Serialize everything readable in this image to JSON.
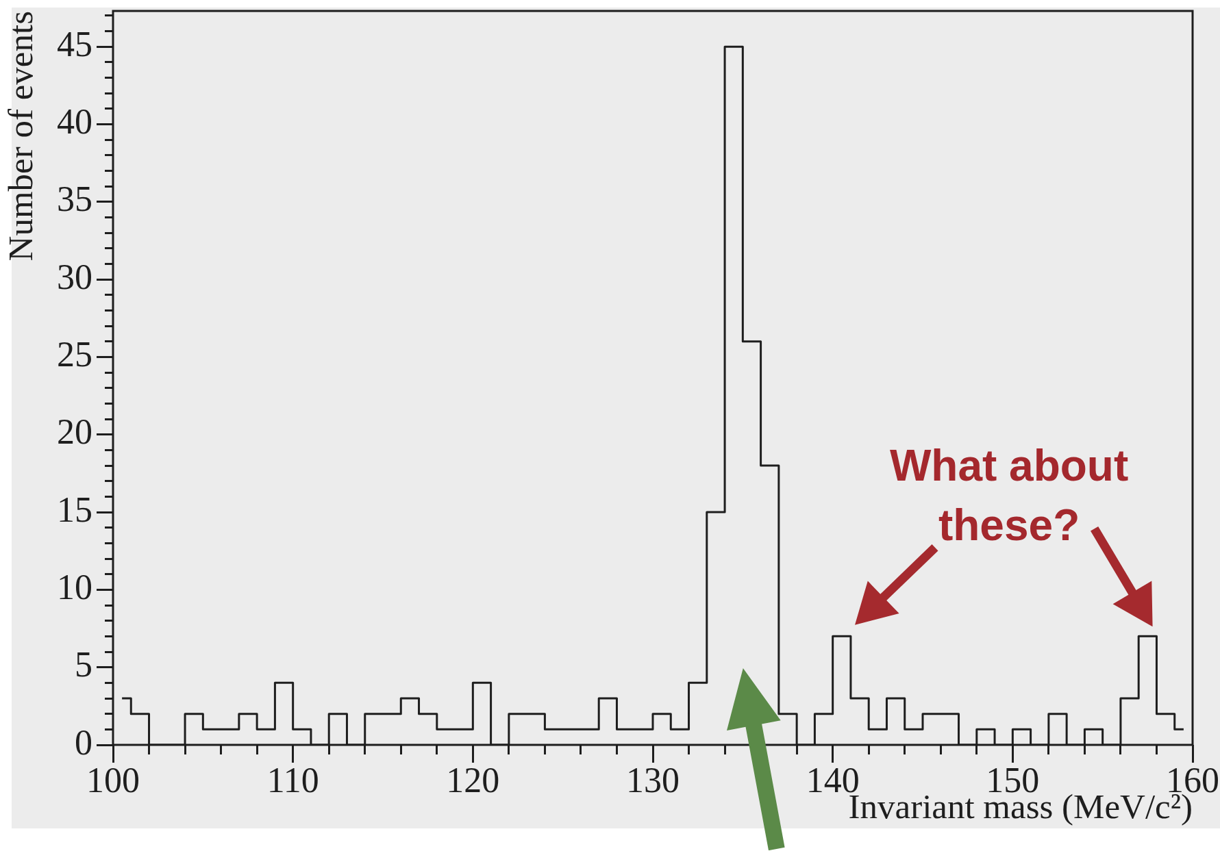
{
  "chart_data": {
    "type": "step",
    "xlabel": "Invariant mass (MeV/c²)",
    "ylabel": "Number of events",
    "x": [
      100.5,
      101.5,
      102.5,
      103.5,
      104.5,
      105.5,
      106.5,
      107.5,
      108.5,
      109.5,
      110.5,
      111.5,
      112.5,
      113.5,
      114.5,
      115.5,
      116.5,
      117.5,
      118.5,
      119.5,
      120.5,
      121.5,
      122.5,
      123.5,
      124.5,
      125.5,
      126.5,
      127.5,
      128.5,
      129.5,
      130.5,
      131.5,
      132.5,
      133.5,
      134.5,
      135.5,
      136.5,
      137.5,
      138.5,
      139.5,
      140.5,
      141.5,
      142.5,
      143.5,
      144.5,
      145.5,
      146.5,
      147.5,
      148.5,
      149.5,
      150.5,
      151.5,
      152.5,
      153.5,
      154.5,
      155.5,
      156.5,
      157.5,
      158.5,
      159.5
    ],
    "values": [
      3,
      2,
      0,
      0,
      2,
      1,
      1,
      2,
      1,
      4,
      1,
      0,
      2,
      0,
      2,
      2,
      3,
      2,
      1,
      1,
      4,
      0,
      2,
      2,
      1,
      1,
      1,
      3,
      1,
      1,
      2,
      1,
      4,
      15,
      45,
      26,
      18,
      2,
      0,
      2,
      7,
      3,
      1,
      3,
      1,
      2,
      2,
      0,
      1,
      0,
      1,
      0,
      2,
      0,
      1,
      0,
      3,
      7,
      2,
      1
    ],
    "color": "#1e1e1e",
    "xlim": [
      100,
      160
    ],
    "xticks": [
      100,
      {
        "value": 102,
        "label": null
      },
      {
        "value": 104,
        "label": null
      },
      {
        "value": 106,
        "label": null
      },
      {
        "value": 108,
        "label": null
      },
      110,
      {
        "value": 112,
        "label": null
      },
      {
        "value": 114,
        "label": null
      },
      {
        "value": 116,
        "label": null
      },
      {
        "value": 118,
        "label": null
      },
      120,
      {
        "value": 122,
        "label": null
      },
      {
        "value": 124,
        "label": null
      },
      {
        "value": 126,
        "label": null
      },
      {
        "value": 128,
        "label": null
      },
      130,
      {
        "value": 132,
        "label": null
      },
      {
        "value": 134,
        "label": null
      },
      {
        "value": 136,
        "label": null
      },
      {
        "value": 138,
        "label": null
      },
      140,
      {
        "value": 142,
        "label": null
      },
      {
        "value": 144,
        "label": null
      },
      {
        "value": 146,
        "label": null
      },
      {
        "value": 148,
        "label": null
      },
      150,
      {
        "value": 152,
        "label": null
      },
      {
        "value": 154,
        "label": null
      },
      {
        "value": 156,
        "label": null
      },
      {
        "value": 158,
        "label": null
      },
      160
    ],
    "ylim": [
      0,
      47.3
    ],
    "yticks": [
      0,
      {
        "value": 1,
        "label": null
      },
      {
        "value": 2,
        "label": null
      },
      {
        "value": 3,
        "label": null
      },
      {
        "value": 4,
        "label": null
      },
      5,
      {
        "value": 6,
        "label": null
      },
      {
        "value": 7,
        "label": null
      },
      {
        "value": 8,
        "label": null
      },
      {
        "value": 9,
        "label": null
      },
      10,
      {
        "value": 11,
        "label": null
      },
      {
        "value": 12,
        "label": null
      },
      {
        "value": 13,
        "label": null
      },
      {
        "value": 14,
        "label": null
      },
      15,
      {
        "value": 16,
        "label": null
      },
      {
        "value": 17,
        "label": null
      },
      {
        "value": 18,
        "label": null
      },
      {
        "value": 19,
        "label": null
      },
      20,
      {
        "value": 21,
        "label": null
      },
      {
        "value": 22,
        "label": null
      },
      {
        "value": 23,
        "label": null
      },
      {
        "value": 24,
        "label": null
      },
      25,
      {
        "value": 26,
        "label": null
      },
      {
        "value": 27,
        "label": null
      },
      {
        "value": 28,
        "label": null
      },
      {
        "value": 29,
        "label": null
      },
      30,
      {
        "value": 31,
        "label": null
      },
      {
        "value": 32,
        "label": null
      },
      {
        "value": 33,
        "label": null
      },
      {
        "value": 34,
        "label": null
      },
      35,
      {
        "value": 36,
        "label": null
      },
      {
        "value": 37,
        "label": null
      },
      {
        "value": 38,
        "label": null
      },
      {
        "value": 39,
        "label": null
      },
      40,
      {
        "value": 41,
        "label": null
      },
      {
        "value": 42,
        "label": null
      },
      {
        "value": 43,
        "label": null
      },
      {
        "value": 44,
        "label": null
      },
      45,
      {
        "value": 46,
        "label": null
      },
      {
        "value": 47,
        "label": null
      }
    ],
    "annotations": [
      "What about these?"
    ]
  }
}
